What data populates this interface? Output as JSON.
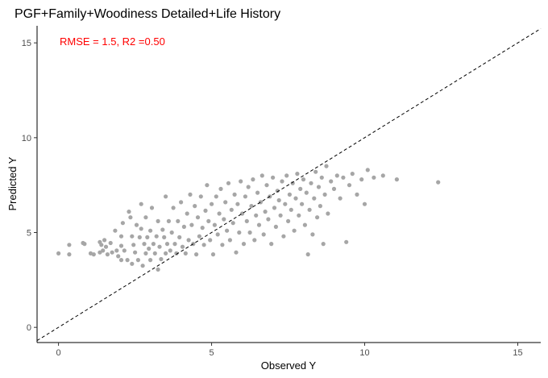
{
  "chart_data": {
    "type": "scatter",
    "title": "PGF+Family+Woodiness Detailed+Life History",
    "xlabel": "Observed Y",
    "ylabel": "Predicted Y",
    "xlim": [
      -0.7,
      15.75
    ],
    "ylim": [
      -0.8,
      15.9
    ],
    "x_ticks": [
      0,
      5,
      10,
      15
    ],
    "y_ticks": [
      0,
      5,
      10,
      15
    ],
    "grid": false,
    "annotation": "RMSE = 1.5, R2 =0.50",
    "colors": {
      "points": "#a6a6a6",
      "annotation": "#ff0000",
      "reference_line": "#000000"
    },
    "reference_line": {
      "style": "dashed",
      "slope": 1,
      "intercept": 0
    },
    "points": [
      [
        0,
        3.9
      ],
      [
        0.35,
        4.35
      ],
      [
        0.35,
        3.85
      ],
      [
        0.8,
        4.45
      ],
      [
        0.85,
        4.4
      ],
      [
        1.05,
        3.9
      ],
      [
        1.15,
        3.85
      ],
      [
        1.35,
        4.5
      ],
      [
        1.35,
        3.95
      ],
      [
        1.4,
        4.35
      ],
      [
        1.45,
        4.05
      ],
      [
        1.5,
        4.6
      ],
      [
        1.55,
        4.25
      ],
      [
        1.6,
        3.85
      ],
      [
        1.7,
        4.45
      ],
      [
        1.75,
        3.95
      ],
      [
        1.85,
        5.1
      ],
      [
        1.9,
        4.05
      ],
      [
        1.95,
        3.75
      ],
      [
        2.05,
        4.8
      ],
      [
        2.05,
        4.3
      ],
      [
        2.05,
        3.55
      ],
      [
        2.1,
        5.5
      ],
      [
        2.15,
        4.05
      ],
      [
        2.25,
        3.55
      ],
      [
        2.3,
        6.1
      ],
      [
        2.35,
        5.8
      ],
      [
        2.4,
        3.35
      ],
      [
        2.4,
        4.8
      ],
      [
        2.45,
        4.35
      ],
      [
        2.5,
        3.95
      ],
      [
        2.55,
        5.4
      ],
      [
        2.6,
        3.55
      ],
      [
        2.65,
        4.75
      ],
      [
        2.7,
        6.5
      ],
      [
        2.7,
        5.2
      ],
      [
        2.75,
        3.25
      ],
      [
        2.8,
        4.4
      ],
      [
        2.85,
        3.9
      ],
      [
        2.85,
        5.8
      ],
      [
        2.9,
        4.75
      ],
      [
        2.95,
        4.15
      ],
      [
        3.0,
        5.1
      ],
      [
        3.0,
        3.55
      ],
      [
        3.05,
        6.3
      ],
      [
        3.1,
        4.4
      ],
      [
        3.15,
        3.9
      ],
      [
        3.2,
        4.8
      ],
      [
        3.25,
        5.6
      ],
      [
        3.25,
        3.05
      ],
      [
        3.3,
        4.25
      ],
      [
        3.35,
        3.6
      ],
      [
        3.4,
        5.15
      ],
      [
        3.45,
        4.75
      ],
      [
        3.5,
        6.9
      ],
      [
        3.5,
        3.9
      ],
      [
        3.55,
        4.4
      ],
      [
        3.6,
        5.6
      ],
      [
        3.65,
        4.05
      ],
      [
        3.7,
        5.0
      ],
      [
        3.75,
        6.3
      ],
      [
        3.8,
        4.4
      ],
      [
        3.85,
        3.9
      ],
      [
        3.9,
        5.6
      ],
      [
        3.95,
        4.75
      ],
      [
        4.0,
        6.6
      ],
      [
        4.05,
        4.25
      ],
      [
        4.1,
        5.3
      ],
      [
        4.15,
        3.9
      ],
      [
        4.2,
        6.0
      ],
      [
        4.25,
        4.6
      ],
      [
        4.3,
        7.0
      ],
      [
        4.35,
        5.4
      ],
      [
        4.4,
        4.4
      ],
      [
        4.45,
        6.4
      ],
      [
        4.5,
        3.85
      ],
      [
        4.55,
        5.8
      ],
      [
        4.6,
        4.8
      ],
      [
        4.65,
        6.9
      ],
      [
        4.7,
        5.25
      ],
      [
        4.75,
        4.35
      ],
      [
        4.8,
        6.15
      ],
      [
        4.85,
        7.5
      ],
      [
        4.9,
        5.6
      ],
      [
        4.95,
        4.6
      ],
      [
        5.0,
        6.5
      ],
      [
        5.05,
        3.85
      ],
      [
        5.1,
        5.4
      ],
      [
        5.15,
        6.9
      ],
      [
        5.2,
        4.9
      ],
      [
        5.25,
        6.0
      ],
      [
        5.3,
        7.3
      ],
      [
        5.35,
        4.35
      ],
      [
        5.4,
        5.7
      ],
      [
        5.45,
        6.6
      ],
      [
        5.5,
        5.1
      ],
      [
        5.55,
        7.6
      ],
      [
        5.6,
        4.6
      ],
      [
        5.65,
        6.2
      ],
      [
        5.7,
        5.5
      ],
      [
        5.75,
        7.0
      ],
      [
        5.8,
        3.95
      ],
      [
        5.85,
        6.5
      ],
      [
        5.9,
        5.0
      ],
      [
        5.95,
        7.7
      ],
      [
        6.0,
        6.0
      ],
      [
        6.05,
        4.4
      ],
      [
        6.1,
        6.9
      ],
      [
        6.15,
        5.6
      ],
      [
        6.2,
        7.4
      ],
      [
        6.25,
        5.0
      ],
      [
        6.3,
        6.4
      ],
      [
        6.35,
        7.8
      ],
      [
        6.4,
        4.6
      ],
      [
        6.45,
        5.9
      ],
      [
        6.5,
        7.1
      ],
      [
        6.55,
        5.4
      ],
      [
        6.6,
        6.6
      ],
      [
        6.65,
        8.0
      ],
      [
        6.7,
        4.9
      ],
      [
        6.75,
        6.1
      ],
      [
        6.8,
        7.5
      ],
      [
        6.85,
        5.7
      ],
      [
        6.9,
        6.9
      ],
      [
        6.95,
        4.4
      ],
      [
        7.0,
        7.9
      ],
      [
        7.05,
        6.3
      ],
      [
        7.1,
        5.3
      ],
      [
        7.15,
        7.2
      ],
      [
        7.2,
        6.7
      ],
      [
        7.25,
        5.9
      ],
      [
        7.3,
        7.7
      ],
      [
        7.35,
        4.8
      ],
      [
        7.4,
        6.5
      ],
      [
        7.45,
        8.0
      ],
      [
        7.5,
        5.6
      ],
      [
        7.55,
        7.0
      ],
      [
        7.6,
        6.2
      ],
      [
        7.65,
        7.6
      ],
      [
        7.7,
        5.1
      ],
      [
        7.75,
        6.8
      ],
      [
        7.8,
        8.1
      ],
      [
        7.85,
        5.9
      ],
      [
        7.9,
        7.3
      ],
      [
        7.95,
        6.5
      ],
      [
        8.0,
        7.8
      ],
      [
        8.05,
        5.4
      ],
      [
        8.1,
        7.1
      ],
      [
        8.15,
        3.85
      ],
      [
        8.2,
        6.2
      ],
      [
        8.25,
        7.6
      ],
      [
        8.3,
        4.9
      ],
      [
        8.35,
        6.8
      ],
      [
        8.4,
        8.2
      ],
      [
        8.45,
        5.8
      ],
      [
        8.5,
        7.4
      ],
      [
        8.55,
        6.4
      ],
      [
        8.6,
        7.9
      ],
      [
        8.65,
        4.4
      ],
      [
        8.7,
        7.0
      ],
      [
        8.75,
        8.5
      ],
      [
        8.8,
        6.0
      ],
      [
        8.9,
        7.7
      ],
      [
        9.0,
        7.3
      ],
      [
        9.1,
        8.0
      ],
      [
        9.2,
        6.8
      ],
      [
        9.3,
        7.9
      ],
      [
        9.4,
        4.5
      ],
      [
        9.5,
        7.5
      ],
      [
        9.6,
        8.1
      ],
      [
        9.75,
        7.0
      ],
      [
        9.9,
        7.8
      ],
      [
        10.0,
        6.5
      ],
      [
        10.1,
        8.3
      ],
      [
        10.3,
        7.9
      ],
      [
        10.6,
        8.0
      ],
      [
        11.05,
        7.8
      ],
      [
        12.4,
        7.65
      ]
    ]
  }
}
